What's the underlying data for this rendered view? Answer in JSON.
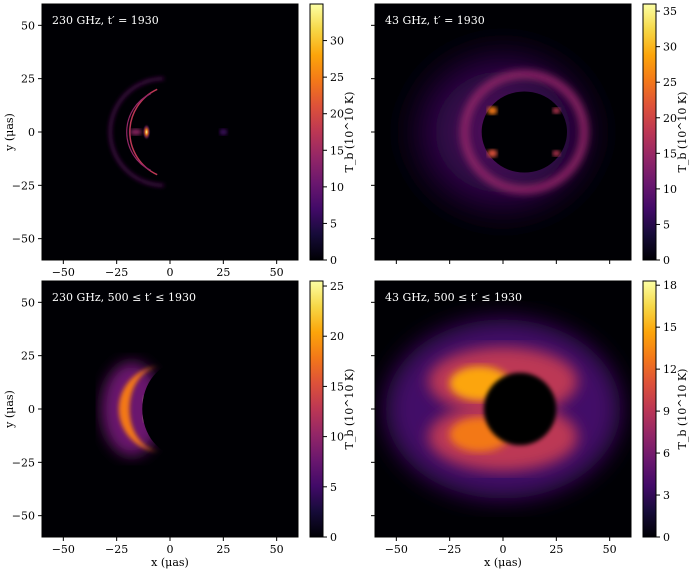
{
  "chart_data": [
    {
      "type": "heatmap",
      "title": "230 GHz, t′ = 1930",
      "xlabel": "",
      "ylabel": "y (μas)",
      "xlim": [
        -60,
        60
      ],
      "ylim": [
        -60,
        60
      ],
      "xticks": [
        "−50",
        "−25",
        "0",
        "25",
        "50"
      ],
      "yticks": [
        "50",
        "25",
        "0",
        "−25",
        "−50"
      ],
      "colorbar": {
        "label": "T_b (10^10 K)",
        "range": [
          0,
          35
        ],
        "ticks": [
          "0",
          "5",
          "10",
          "15",
          "20",
          "25",
          "30"
        ]
      }
    },
    {
      "type": "heatmap",
      "title": "43 GHz, t′ = 1930",
      "xlabel": "",
      "ylabel": "",
      "xlim": [
        -60,
        60
      ],
      "ylim": [
        -60,
        60
      ],
      "colorbar": {
        "label": "T_b (10^10 K)",
        "range": [
          0,
          36
        ],
        "ticks": [
          "0",
          "5",
          "10",
          "15",
          "20",
          "25",
          "30",
          "35"
        ]
      }
    },
    {
      "type": "heatmap",
      "title": "230 GHz, 500 ≤ t′ ≤ 1930",
      "xlabel": "x (μas)",
      "ylabel": "y (μas)",
      "xlim": [
        -60,
        60
      ],
      "ylim": [
        -60,
        60
      ],
      "xticks": [
        "−50",
        "−25",
        "0",
        "25",
        "50"
      ],
      "yticks": [
        "50",
        "25",
        "0",
        "−25",
        "−50"
      ],
      "colorbar": {
        "label": "T_b (10^10 K)",
        "range": [
          0,
          25.5
        ],
        "ticks": [
          "0",
          "5",
          "10",
          "15",
          "20",
          "25"
        ]
      }
    },
    {
      "type": "heatmap",
      "title": "43 GHz, 500 ≤ t′ ≤ 1930",
      "xlabel": "x (μas)",
      "ylabel": "",
      "xlim": [
        -60,
        60
      ],
      "ylim": [
        -60,
        60
      ],
      "xticks": [
        "−50",
        "−25",
        "0",
        "25",
        "50"
      ],
      "colorbar": {
        "label": "T_b (10^10 K)",
        "range": [
          0,
          18.3
        ],
        "ticks": [
          "0",
          "3",
          "6",
          "9",
          "12",
          "15",
          "18"
        ]
      }
    }
  ],
  "colormap": "inferno",
  "colors": {
    "background": "#000004",
    "peak": "#fcffa4"
  }
}
